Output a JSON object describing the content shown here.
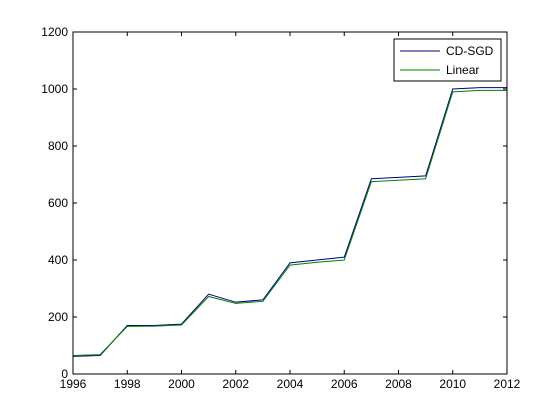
{
  "chart_data": {
    "type": "line",
    "title": "",
    "xlabel": "",
    "ylabel": "",
    "xlim": [
      1996,
      2012
    ],
    "ylim": [
      0,
      1200
    ],
    "xticks": [
      1996,
      1998,
      2000,
      2002,
      2004,
      2006,
      2008,
      2010,
      2012
    ],
    "yticks": [
      0,
      200,
      400,
      600,
      800,
      1000,
      1200
    ],
    "grid": false,
    "legend_position": "top-right",
    "x": [
      1996,
      1997,
      1998,
      1999,
      2000,
      2001,
      2002,
      2003,
      2004,
      2005,
      2006,
      2007,
      2008,
      2009,
      2010,
      2011,
      2012
    ],
    "series": [
      {
        "name": "CD-SGD",
        "color": "#00007f",
        "values": [
          62,
          65,
          170,
          170,
          175,
          280,
          252,
          260,
          390,
          400,
          410,
          685,
          690,
          695,
          1000,
          1005,
          1005
        ]
      },
      {
        "name": "Linear",
        "color": "#007f00",
        "values": [
          65,
          68,
          167,
          168,
          172,
          272,
          248,
          255,
          382,
          392,
          400,
          675,
          680,
          685,
          990,
          995,
          995
        ]
      }
    ]
  }
}
